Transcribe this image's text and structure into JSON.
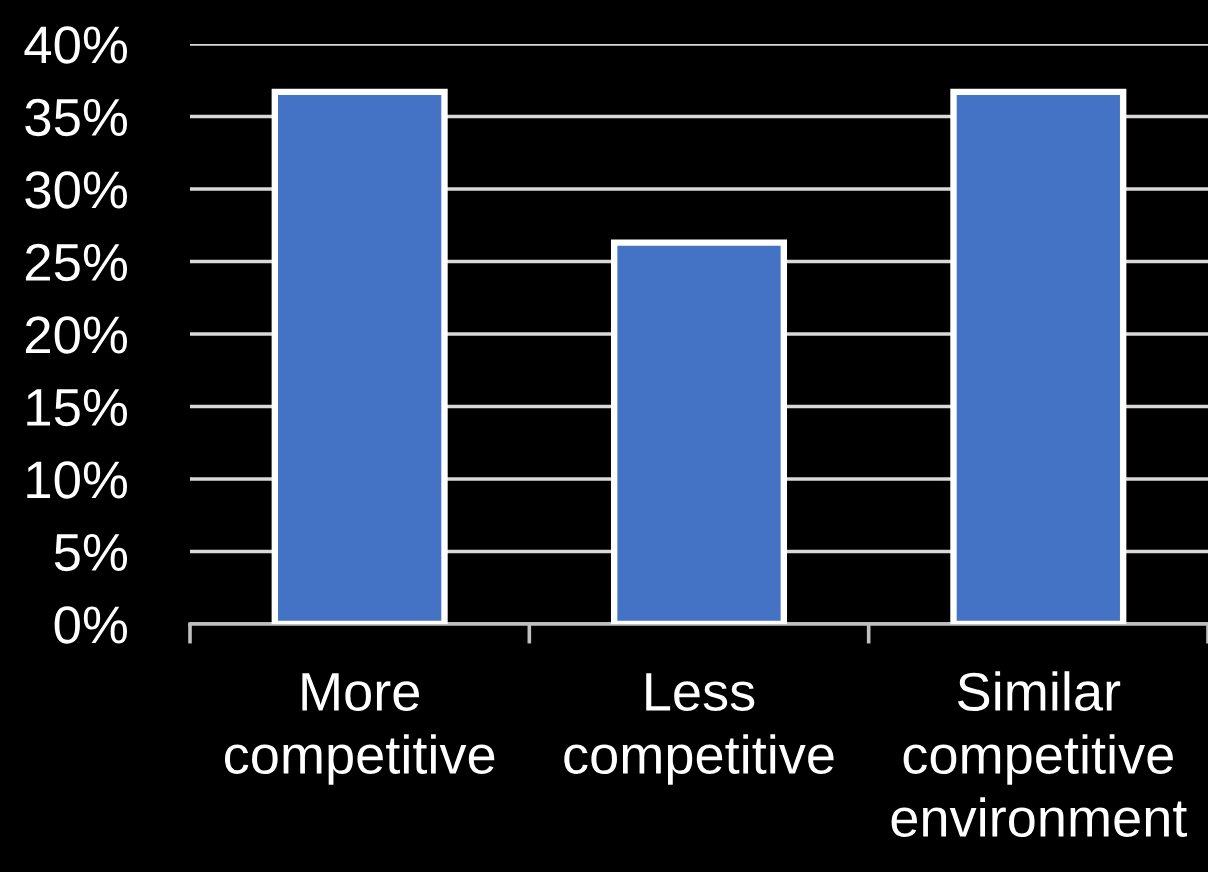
{
  "chart_data": {
    "type": "bar",
    "categories": [
      "More\ncompetitive",
      "Less\ncompetitive",
      "Similar\ncompetitive\nenvironment"
    ],
    "values": [
      36.7,
      26.3,
      36.7
    ],
    "color": "#4472c4",
    "ylim": [
      0,
      40
    ],
    "yticks": [
      {
        "value": 0,
        "label": "0%"
      },
      {
        "value": 5,
        "label": "5%"
      },
      {
        "value": 10,
        "label": "10%"
      },
      {
        "value": 15,
        "label": "15%"
      },
      {
        "value": 20,
        "label": "20%"
      },
      {
        "value": 25,
        "label": "25%"
      },
      {
        "value": 30,
        "label": "30%"
      },
      {
        "value": 35,
        "label": "35%"
      },
      {
        "value": 40,
        "label": "40%"
      }
    ],
    "grid": "y"
  }
}
